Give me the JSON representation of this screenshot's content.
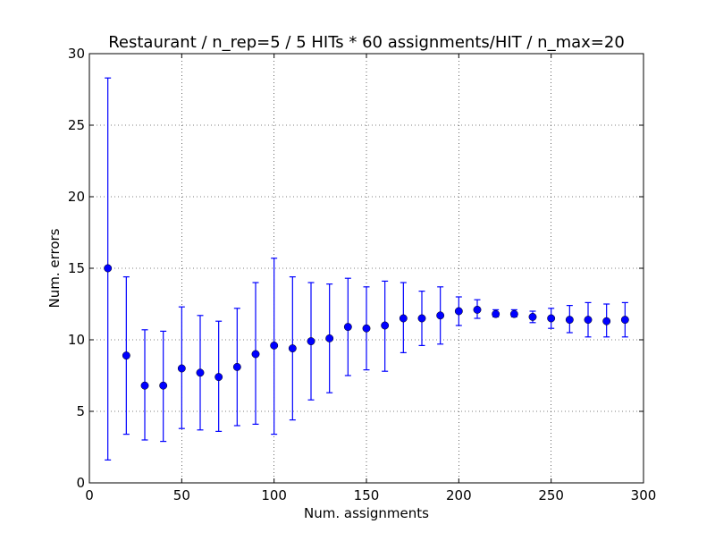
{
  "chart_data": {
    "type": "scatter",
    "title": "Restaurant / n_rep=5 / 5 HITs * 60 assignments/HIT / n_max=20",
    "xlabel": "Num. assignments",
    "ylabel": "Num. errors",
    "xlim": [
      0,
      300
    ],
    "ylim": [
      0,
      30
    ],
    "xticks": [
      0,
      50,
      100,
      150,
      200,
      250,
      300
    ],
    "yticks": [
      0,
      5,
      10,
      15,
      20,
      25,
      30
    ],
    "grid": true,
    "marker_color": "#0000ff",
    "error_bars": true,
    "series": [
      {
        "x": [
          10,
          20,
          30,
          40,
          50,
          60,
          70,
          80,
          90,
          100,
          110,
          120,
          130,
          140,
          150,
          160,
          170,
          180,
          190,
          200,
          210,
          220,
          230,
          240,
          250,
          260,
          270,
          280,
          290
        ],
        "y": [
          15.0,
          8.9,
          6.8,
          6.8,
          8.0,
          7.7,
          7.4,
          8.1,
          9.0,
          9.6,
          9.4,
          9.9,
          10.1,
          10.9,
          10.8,
          11.0,
          11.5,
          11.5,
          11.7,
          12.0,
          12.1,
          11.8,
          11.8,
          11.6,
          11.5,
          11.4,
          11.4,
          11.3,
          11.4
        ],
        "yerr_low": [
          1.6,
          3.4,
          3.0,
          2.9,
          3.8,
          3.7,
          3.6,
          4.0,
          4.1,
          3.4,
          4.4,
          5.8,
          6.3,
          7.5,
          7.9,
          7.8,
          9.1,
          9.6,
          9.7,
          11.0,
          11.5,
          11.6,
          11.6,
          11.2,
          10.8,
          10.5,
          10.2,
          10.2,
          10.2
        ],
        "yerr_high": [
          28.3,
          14.4,
          10.7,
          10.6,
          12.3,
          11.7,
          11.3,
          12.2,
          14.0,
          15.7,
          14.4,
          14.0,
          13.9,
          14.3,
          13.7,
          14.1,
          14.0,
          13.4,
          13.7,
          13.0,
          12.8,
          12.1,
          12.1,
          12.0,
          12.2,
          12.4,
          12.6,
          12.5,
          12.6
        ]
      }
    ]
  }
}
